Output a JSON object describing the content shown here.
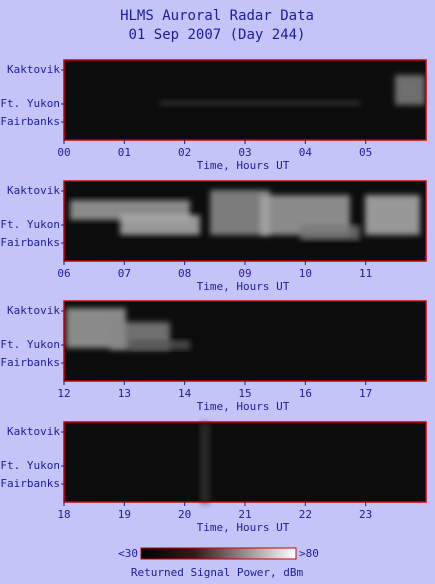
{
  "title": "HLMS Auroral Radar Data",
  "subtitle": "01 Sep 2007 (Day 244)",
  "chart_data": [
    {
      "type": "heatmap",
      "x_label": "Time, Hours UT",
      "y_labels": [
        "Kaktovik",
        "Ft. Yukon",
        "Fairbanks"
      ],
      "xlim": [
        0,
        6
      ],
      "xticks": [
        {
          "value": 0,
          "label": "00"
        },
        {
          "value": 1,
          "label": "01"
        },
        {
          "value": 2,
          "label": "02"
        },
        {
          "value": 3,
          "label": "03"
        },
        {
          "value": 4,
          "label": "04"
        },
        {
          "value": 5,
          "label": "05"
        }
      ]
    },
    {
      "type": "heatmap",
      "x_label": "Time, Hours UT",
      "y_labels": [
        "Kaktovik",
        "Ft. Yukon",
        "Fairbanks"
      ],
      "xlim": [
        6,
        12
      ],
      "xticks": [
        {
          "value": 6,
          "label": "06"
        },
        {
          "value": 7,
          "label": "07"
        },
        {
          "value": 8,
          "label": "08"
        },
        {
          "value": 9,
          "label": "09"
        },
        10,
        11
      ]
    },
    {
      "type": "heatmap",
      "x_label": "Time, Hours UT",
      "y_labels": [
        "Kaktovik",
        "Ft. Yukon",
        "Fairbanks"
      ],
      "xlim": [
        12,
        18
      ],
      "xticks": [
        12,
        13,
        14,
        15,
        16,
        17
      ]
    },
    {
      "type": "heatmap",
      "x_label": "Time, Hours UT",
      "y_labels": [
        "Kaktovik",
        "Ft. Yukon",
        "Fairbanks"
      ],
      "xlim": [
        18,
        24
      ],
      "xticks": [
        18,
        19,
        20,
        21,
        22,
        23
      ]
    }
  ],
  "colorbar": {
    "min_label": {
      "value": 30,
      "label": "<30"
    },
    "max_label": {
      "value": 80,
      "label": ">80"
    },
    "label": "Returned Signal Power, dBm"
  }
}
